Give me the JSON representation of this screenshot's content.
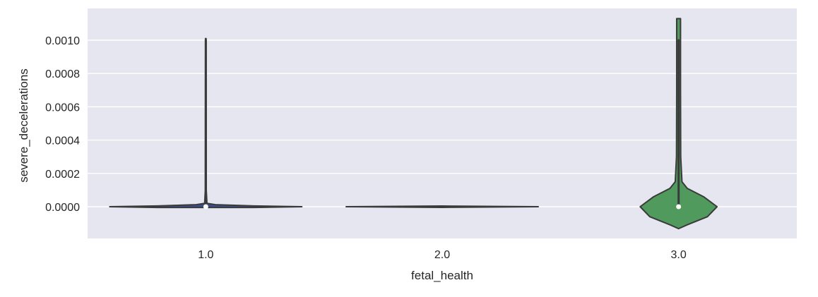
{
  "chart_data": {
    "type": "violin",
    "xlabel": "fetal_health",
    "ylabel": "severe_decelerations",
    "categories": [
      "1.0",
      "2.0",
      "3.0"
    ],
    "y_ticks": [
      "0.0000",
      "0.0002",
      "0.0004",
      "0.0006",
      "0.0008",
      "0.0010"
    ],
    "ylim": [
      -0.000195,
      0.00121
    ],
    "grid": true,
    "background": "#e6e6f0",
    "gridline_color": "#ffffff",
    "series": [
      {
        "category": "1.0",
        "color": "#3b4d8c",
        "min": 0.0,
        "max": 0.001,
        "median": 0.0,
        "density_half_width": [
          [
            -5e-06,
            0.5
          ],
          [
            0.0,
            1.0
          ],
          [
            5e-06,
            0.5
          ],
          [
            1.2e-05,
            0.1
          ],
          [
            2e-05,
            0.012
          ],
          [
            0.0001,
            0.005
          ],
          [
            0.00101,
            0.003
          ]
        ]
      },
      {
        "category": "2.0",
        "color": "#c44e52",
        "min": 0.0,
        "max": 0.0,
        "median": 0.0,
        "density_half_width": [
          [
            -4e-06,
            0.0
          ],
          [
            0.0,
            1.0
          ],
          [
            4e-06,
            0.0
          ]
        ]
      },
      {
        "category": "3.0",
        "color": "#4f9a5c",
        "min": 0.0,
        "max": 0.001,
        "median": 0.0,
        "density_half_width": [
          [
            -0.000132,
            0.0
          ],
          [
            -0.00011,
            0.085
          ],
          [
            -6e-05,
            0.3
          ],
          [
            0.0,
            0.4
          ],
          [
            6e-05,
            0.26
          ],
          [
            0.00011,
            0.09
          ],
          [
            0.00015,
            0.035
          ],
          [
            0.0003,
            0.022
          ],
          [
            0.0007,
            0.02
          ],
          [
            0.00113,
            0.02
          ]
        ]
      }
    ]
  }
}
